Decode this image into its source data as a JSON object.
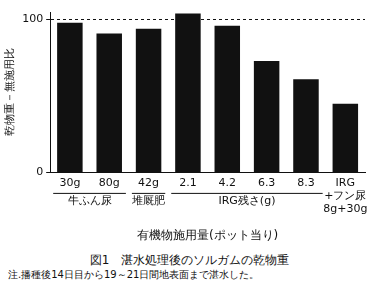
{
  "chart_data": {
    "type": "bar",
    "title": "図1　湛水処理後のソルガムの乾物重",
    "annotations": [
      "注.播種後14日目から19～21日間地表面まで湛水した。"
    ],
    "x_label": "有機物施用量(ポット当り)",
    "y_label": "乾物重－無施用比",
    "categories": [
      "30g",
      "80g",
      "42g",
      "2.1",
      "4.2",
      "6.3",
      "8.3",
      [
        "IRG",
        "+フン尿",
        "8g+30g"
      ]
    ],
    "category_groups": [
      {
        "label": "牛ふん尿",
        "categories": [
          "30g",
          "80g"
        ]
      },
      {
        "label": "堆厩肥",
        "categories": [
          "42g"
        ]
      },
      {
        "label": "IRG残さ(g)",
        "categories": [
          "2.1",
          "4.2",
          "6.3",
          "8.3"
        ]
      }
    ],
    "values": [
      98,
      91,
      94,
      104,
      96,
      73,
      61,
      45
    ],
    "color": "#111111",
    "ylim": [
      0,
      105
    ],
    "yticks": [
      0,
      100
    ],
    "grid": true
  }
}
